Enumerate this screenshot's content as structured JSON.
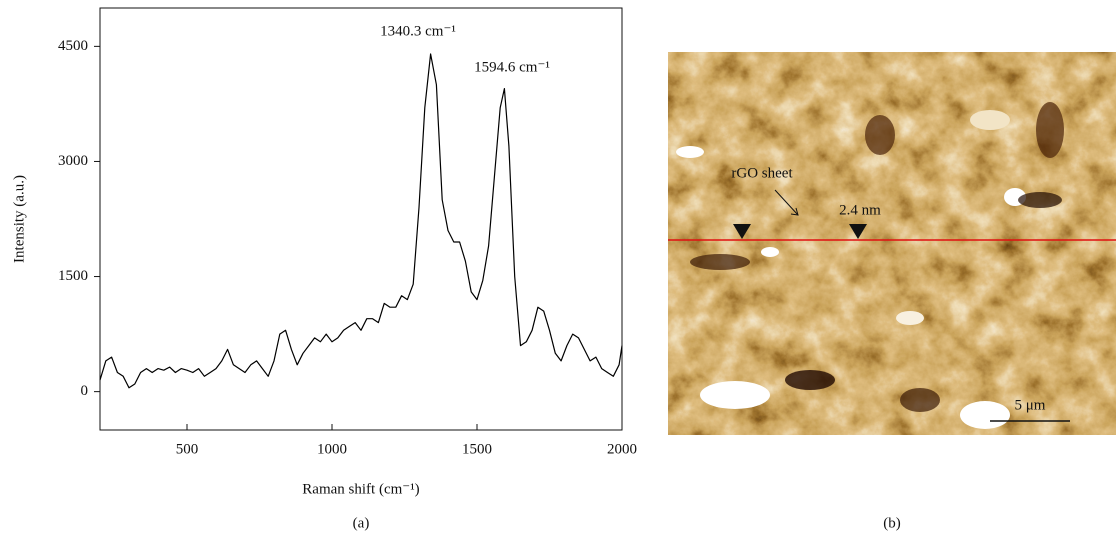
{
  "chart_data": {
    "type": "line",
    "xlabel": "Raman shift (cm⁻¹)",
    "ylabel": "Intensity (a.u.)",
    "panel_label": "(a)",
    "annotations": [
      "1340.3 cm⁻¹",
      "1594.6 cm⁻¹"
    ],
    "xlim": [
      200,
      2000
    ],
    "xticks": [
      500,
      1000,
      1500,
      2000
    ],
    "ylim": [
      -500,
      5000
    ],
    "yticks": [
      0,
      1500,
      3000,
      4500
    ],
    "x": [
      200,
      220,
      240,
      260,
      280,
      300,
      320,
      340,
      360,
      380,
      400,
      420,
      440,
      460,
      480,
      500,
      520,
      540,
      560,
      580,
      600,
      620,
      640,
      660,
      680,
      700,
      720,
      740,
      760,
      780,
      800,
      820,
      840,
      860,
      880,
      900,
      920,
      940,
      960,
      980,
      1000,
      1020,
      1040,
      1060,
      1080,
      1100,
      1120,
      1140,
      1160,
      1180,
      1200,
      1220,
      1240,
      1260,
      1280,
      1300,
      1320,
      1340,
      1360,
      1380,
      1400,
      1420,
      1440,
      1460,
      1480,
      1500,
      1520,
      1540,
      1560,
      1580,
      1594.6,
      1610,
      1630,
      1650,
      1670,
      1690,
      1710,
      1730,
      1750,
      1770,
      1790,
      1810,
      1830,
      1850,
      1870,
      1890,
      1910,
      1930,
      1950,
      1970,
      1990,
      2000
    ],
    "series": [
      {
        "color": "#000000",
        "values": [
          150,
          400,
          450,
          250,
          200,
          50,
          100,
          250,
          300,
          250,
          300,
          280,
          320,
          250,
          300,
          280,
          250,
          300,
          200,
          250,
          300,
          400,
          550,
          350,
          300,
          250,
          350,
          400,
          300,
          200,
          400,
          750,
          800,
          550,
          350,
          500,
          600,
          700,
          650,
          750,
          650,
          700,
          800,
          850,
          900,
          800,
          950,
          950,
          900,
          1150,
          1100,
          1100,
          1250,
          1200,
          1400,
          2400,
          3700,
          4400,
          4000,
          2500,
          2100,
          1950,
          1950,
          1700,
          1300,
          1200,
          1450,
          1900,
          2800,
          3700,
          3950,
          3200,
          1500,
          600,
          650,
          800,
          1100,
          1050,
          800,
          500,
          400,
          600,
          750,
          700,
          550,
          400,
          450,
          300,
          250,
          200,
          350,
          600
        ]
      }
    ]
  },
  "image": {
    "labels": [
      "rGO sheet",
      "2.4 nm",
      "5 μm"
    ],
    "panel_label": "(b)"
  }
}
